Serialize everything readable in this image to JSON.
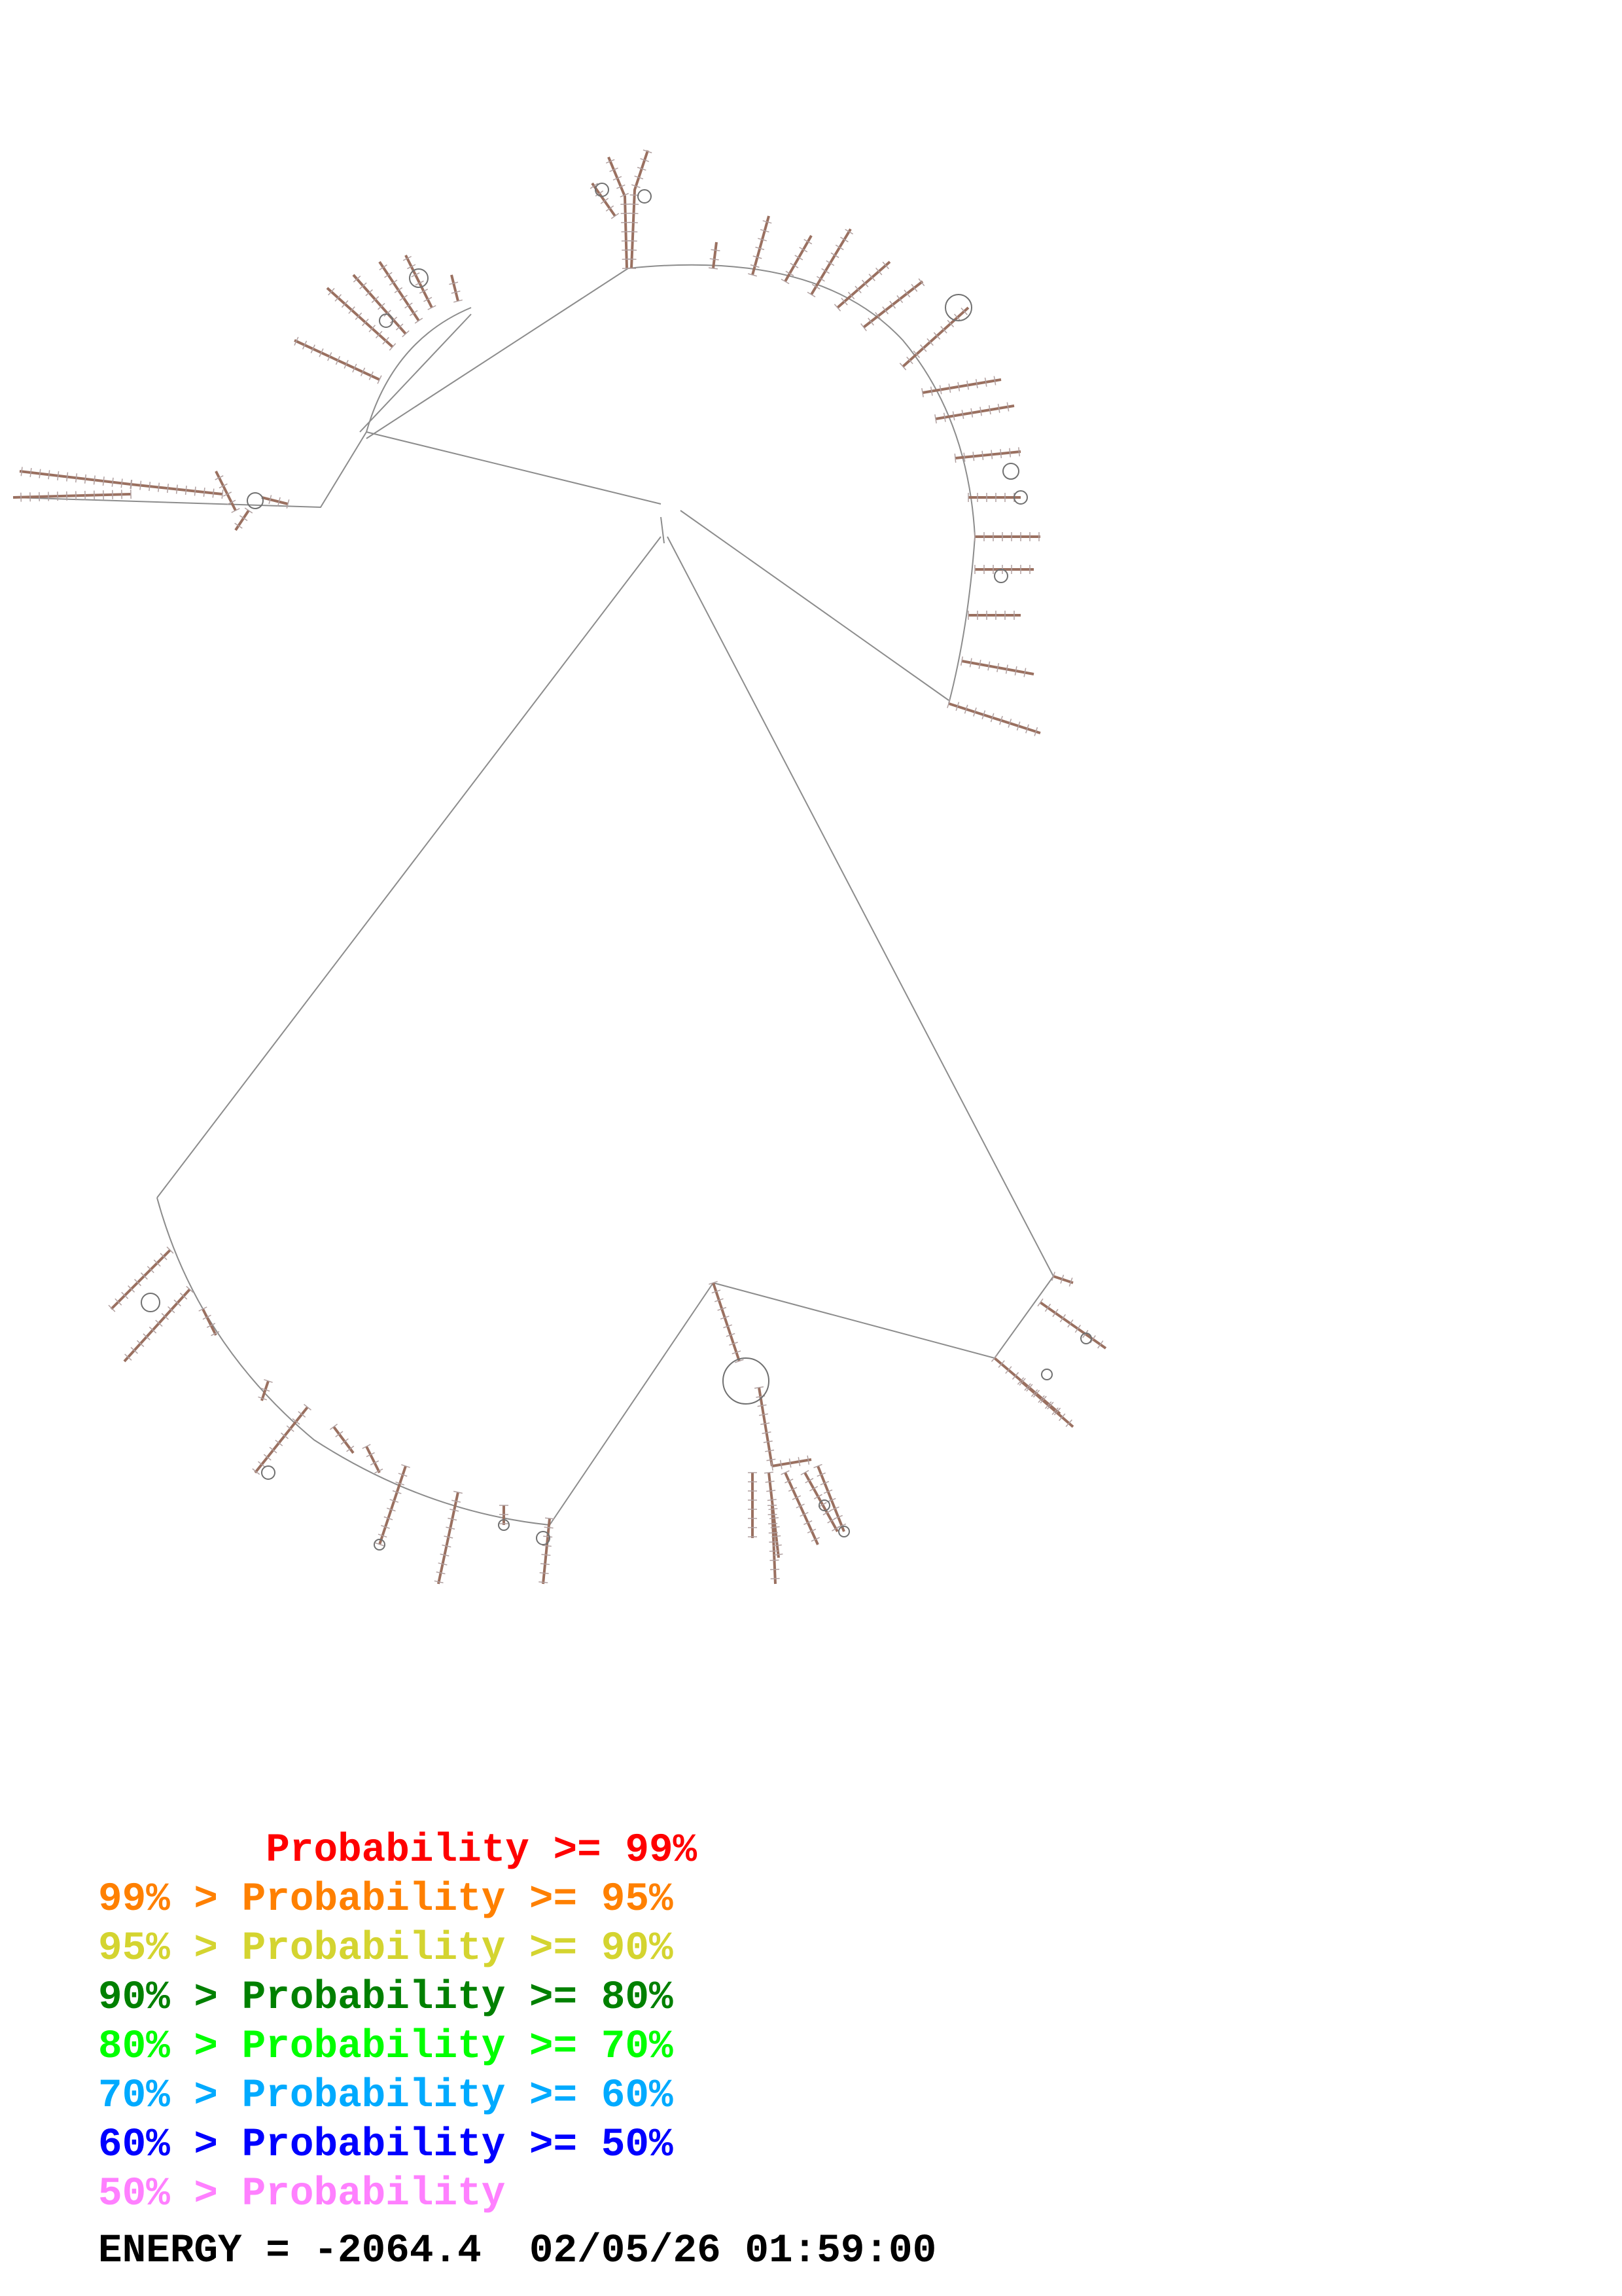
{
  "legend": [
    {
      "prefix": "       ",
      "text": "Probability >= 99%",
      "color": "#ff0000"
    },
    {
      "prefix": "99% > ",
      "text": "Probability >= 95%",
      "color": "#ff8000"
    },
    {
      "prefix": "95% > ",
      "text": "Probability >= 90%",
      "color": "#d4d430"
    },
    {
      "prefix": "90% > ",
      "text": "Probability >= 80%",
      "color": "#008000"
    },
    {
      "prefix": "80% > ",
      "text": "Probability >= 70%",
      "color": "#00ff00"
    },
    {
      "prefix": "70% > ",
      "text": "Probability >= 60%",
      "color": "#00aaff"
    },
    {
      "prefix": "60% > ",
      "text": "Probability >= 50%",
      "color": "#0000ff"
    },
    {
      "prefix": "50% > ",
      "text": "Probability",
      "color": "#ff80ff"
    }
  ],
  "footer": {
    "energy": "ENERGY = -2064.4",
    "timestamp": "02/05/26 01:59:00"
  },
  "colors": {
    "backbone": "#8c8c8c",
    "helix": "#9a7060",
    "loop": "#707070"
  }
}
